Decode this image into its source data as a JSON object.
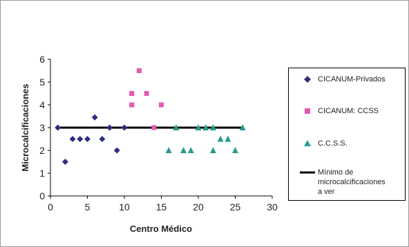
{
  "chart_data": {
    "type": "scatter",
    "title": "",
    "xlabel": "Centro Médico",
    "ylabel": "Microcalcificaciones",
    "xlim": [
      0,
      30
    ],
    "ylim": [
      0,
      6
    ],
    "xticks": [
      0,
      5,
      10,
      15,
      20,
      25,
      30
    ],
    "yticks": [
      0,
      1,
      2,
      3,
      4,
      5,
      6
    ],
    "grid": false,
    "legend_position": "right",
    "series": [
      {
        "name": "CICANUM-Privados",
        "marker": "diamond",
        "color": "#2e2e7f",
        "points": [
          {
            "x": 1,
            "y": 3
          },
          {
            "x": 2,
            "y": 1.5
          },
          {
            "x": 3,
            "y": 2.5
          },
          {
            "x": 4,
            "y": 2.5
          },
          {
            "x": 5,
            "y": 2.5
          },
          {
            "x": 6,
            "y": 3.45
          },
          {
            "x": 7,
            "y": 2.5
          },
          {
            "x": 8,
            "y": 3
          },
          {
            "x": 9,
            "y": 2
          },
          {
            "x": 10,
            "y": 3
          }
        ]
      },
      {
        "name": "CICANUM: CCSS",
        "marker": "square",
        "color": "#e659b0",
        "points": [
          {
            "x": 11,
            "y": 4
          },
          {
            "x": 11,
            "y": 4.5
          },
          {
            "x": 12,
            "y": 5.5
          },
          {
            "x": 13,
            "y": 4.5
          },
          {
            "x": 14,
            "y": 3
          },
          {
            "x": 15,
            "y": 4
          }
        ]
      },
      {
        "name": "C.C.S.S.",
        "marker": "triangle",
        "color": "#2a9a8e",
        "points": [
          {
            "x": 16,
            "y": 2
          },
          {
            "x": 17,
            "y": 3
          },
          {
            "x": 18,
            "y": 2
          },
          {
            "x": 19,
            "y": 2
          },
          {
            "x": 20,
            "y": 3
          },
          {
            "x": 21,
            "y": 3
          },
          {
            "x": 22,
            "y": 2
          },
          {
            "x": 22,
            "y": 3
          },
          {
            "x": 23,
            "y": 2.5
          },
          {
            "x": 24,
            "y": 2.5
          },
          {
            "x": 25,
            "y": 2
          },
          {
            "x": 26,
            "y": 3
          }
        ]
      },
      {
        "name": "Mínimo de microcalcificaciones a ver",
        "legend_lines": [
          "Mínimo de",
          "microcalcificaciones",
          "a ver"
        ],
        "marker": "line",
        "color": "#000000",
        "points": [
          {
            "x": 1,
            "y": 3
          },
          {
            "x": 26,
            "y": 3
          }
        ]
      }
    ]
  }
}
